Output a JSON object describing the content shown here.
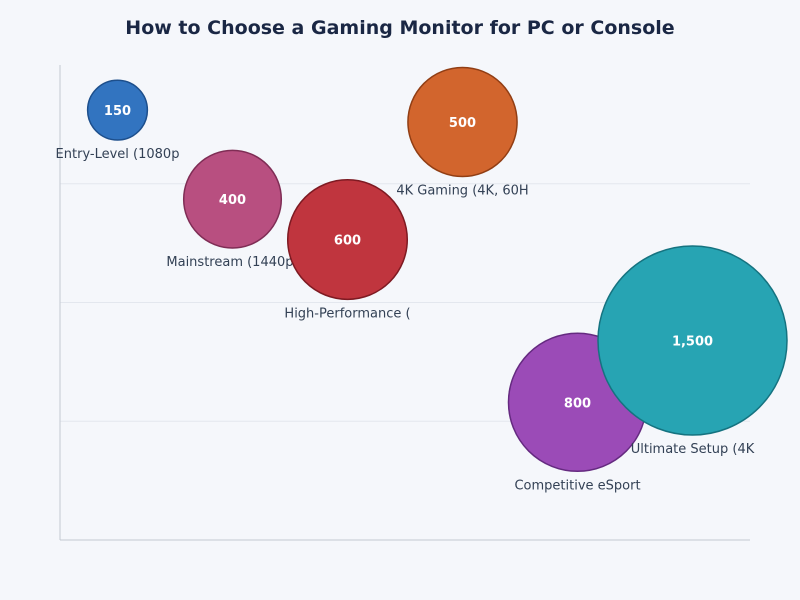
{
  "chart_data": {
    "type": "bubble",
    "title": "How to Choose a Gaming Monitor for PC or Console",
    "xlabel": "",
    "ylabel": "",
    "xlim": [
      0.5,
      6.5
    ],
    "ylim": [
      0,
      4
    ],
    "grid": true,
    "legend": "none",
    "points": [
      {
        "label": "Entry-Level (1080p",
        "x": 1,
        "y": 3.62,
        "size": 150,
        "size_label": "150",
        "color": "#3274c0",
        "stroke": "#1d4f8c"
      },
      {
        "label": "Mainstream (1440p)",
        "x": 2,
        "y": 2.87,
        "size": 400,
        "size_label": "400",
        "color": "#b84f80",
        "stroke": "#7f2d55"
      },
      {
        "label": "High-Performance (",
        "x": 3,
        "y": 2.53,
        "size": 600,
        "size_label": "600",
        "color": "#c0353e",
        "stroke": "#7e1a22"
      },
      {
        "label": "4K Gaming (4K, 60H",
        "x": 4,
        "y": 3.52,
        "size": 500,
        "size_label": "500",
        "color": "#d2652d",
        "stroke": "#913e14"
      },
      {
        "label": "Competitive eSport",
        "x": 5,
        "y": 1.16,
        "size": 800,
        "size_label": "800",
        "color": "#9b4bb7",
        "stroke": "#652a80"
      },
      {
        "label": "Ultimate Setup (4K",
        "x": 6,
        "y": 1.68,
        "size": 1500,
        "size_label": "1,500",
        "color": "#27a4b3",
        "stroke": "#157380"
      }
    ]
  }
}
